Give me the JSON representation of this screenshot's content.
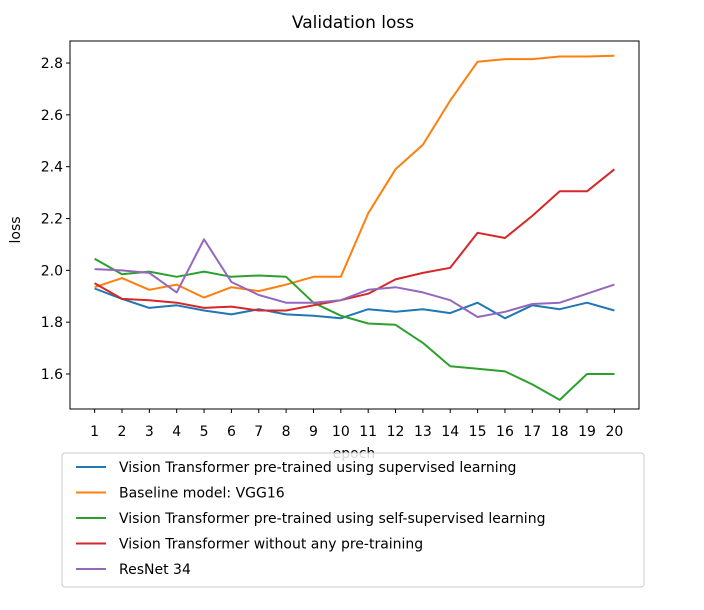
{
  "chart_data": {
    "type": "line",
    "title": "Validation loss",
    "xlabel": "epoch",
    "ylabel": "loss",
    "x": [
      1,
      2,
      3,
      4,
      5,
      6,
      7,
      8,
      9,
      10,
      11,
      12,
      13,
      14,
      15,
      16,
      17,
      18,
      19,
      20
    ],
    "x_ticks": [
      "1",
      "2",
      "3",
      "4",
      "5",
      "6",
      "7",
      "8",
      "9",
      "10",
      "11",
      "12",
      "13",
      "14",
      "15",
      "16",
      "17",
      "18",
      "19",
      "20"
    ],
    "y_ticks": [
      "1.6",
      "1.8",
      "2.0",
      "2.2",
      "2.4",
      "2.6",
      "2.8"
    ],
    "xlim": [
      0.1,
      20.9
    ],
    "ylim": [
      1.465,
      2.885
    ],
    "grid": false,
    "legend_position": "below",
    "series": [
      {
        "name": "Vision Transformer pre-trained using supervised learning",
        "color": "#1f77b4",
        "values": [
          1.93,
          1.89,
          1.855,
          1.865,
          1.845,
          1.83,
          1.85,
          1.83,
          1.825,
          1.815,
          1.85,
          1.84,
          1.85,
          1.835,
          1.875,
          1.815,
          1.865,
          1.85,
          1.875,
          1.845
        ]
      },
      {
        "name": "Baseline model: VGG16",
        "color": "#ff7f0e",
        "values": [
          1.935,
          1.97,
          1.925,
          1.945,
          1.895,
          1.935,
          1.92,
          1.945,
          1.975,
          1.975,
          2.22,
          2.39,
          2.485,
          2.655,
          2.805,
          2.815,
          2.815,
          2.825,
          2.825,
          2.828
        ]
      },
      {
        "name": "Vision Transformer pre-trained using self-supervised learning",
        "color": "#2ca02c",
        "values": [
          2.045,
          1.985,
          1.995,
          1.975,
          1.995,
          1.975,
          1.98,
          1.975,
          1.875,
          1.825,
          1.795,
          1.79,
          1.72,
          1.63,
          1.62,
          1.61,
          1.56,
          1.5,
          1.6,
          1.6
        ]
      },
      {
        "name": "Vision Transformer without any pre-training",
        "color": "#d62728",
        "values": [
          1.95,
          1.89,
          1.885,
          1.875,
          1.855,
          1.86,
          1.845,
          1.845,
          1.865,
          1.885,
          1.91,
          1.965,
          1.99,
          2.01,
          2.145,
          2.125,
          2.21,
          2.305,
          2.305,
          2.39
        ]
      },
      {
        "name": "ResNet 34",
        "color": "#9467bd",
        "values": [
          2.005,
          2.0,
          1.99,
          1.915,
          2.12,
          1.955,
          1.905,
          1.875,
          1.875,
          1.885,
          1.925,
          1.935,
          1.915,
          1.885,
          1.82,
          1.84,
          1.87,
          1.875,
          1.91,
          1.945
        ]
      }
    ]
  }
}
